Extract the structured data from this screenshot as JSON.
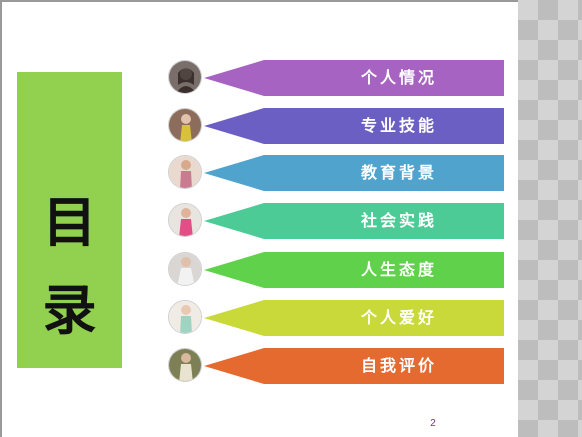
{
  "title": {
    "char1": "目",
    "char2": "录",
    "panel_color": "#92d050"
  },
  "menu": {
    "items": [
      {
        "label": "个人情况",
        "color": "#a763c2",
        "icon": "profile-photo-icon"
      },
      {
        "label": "专业技能",
        "color": "#6b5fc4",
        "icon": "profile-photo-icon"
      },
      {
        "label": "教育背景",
        "color": "#4fa3cc",
        "icon": "profile-photo-icon"
      },
      {
        "label": "社会实践",
        "color": "#4ccb96",
        "icon": "profile-photo-icon"
      },
      {
        "label": "人生态度",
        "color": "#5fd14a",
        "icon": "profile-photo-icon"
      },
      {
        "label": "个人爱好",
        "color": "#c9d93a",
        "icon": "profile-photo-icon"
      },
      {
        "label": "自我评价",
        "color": "#e56a2f",
        "icon": "profile-photo-icon"
      }
    ]
  },
  "page": {
    "number": "2"
  }
}
